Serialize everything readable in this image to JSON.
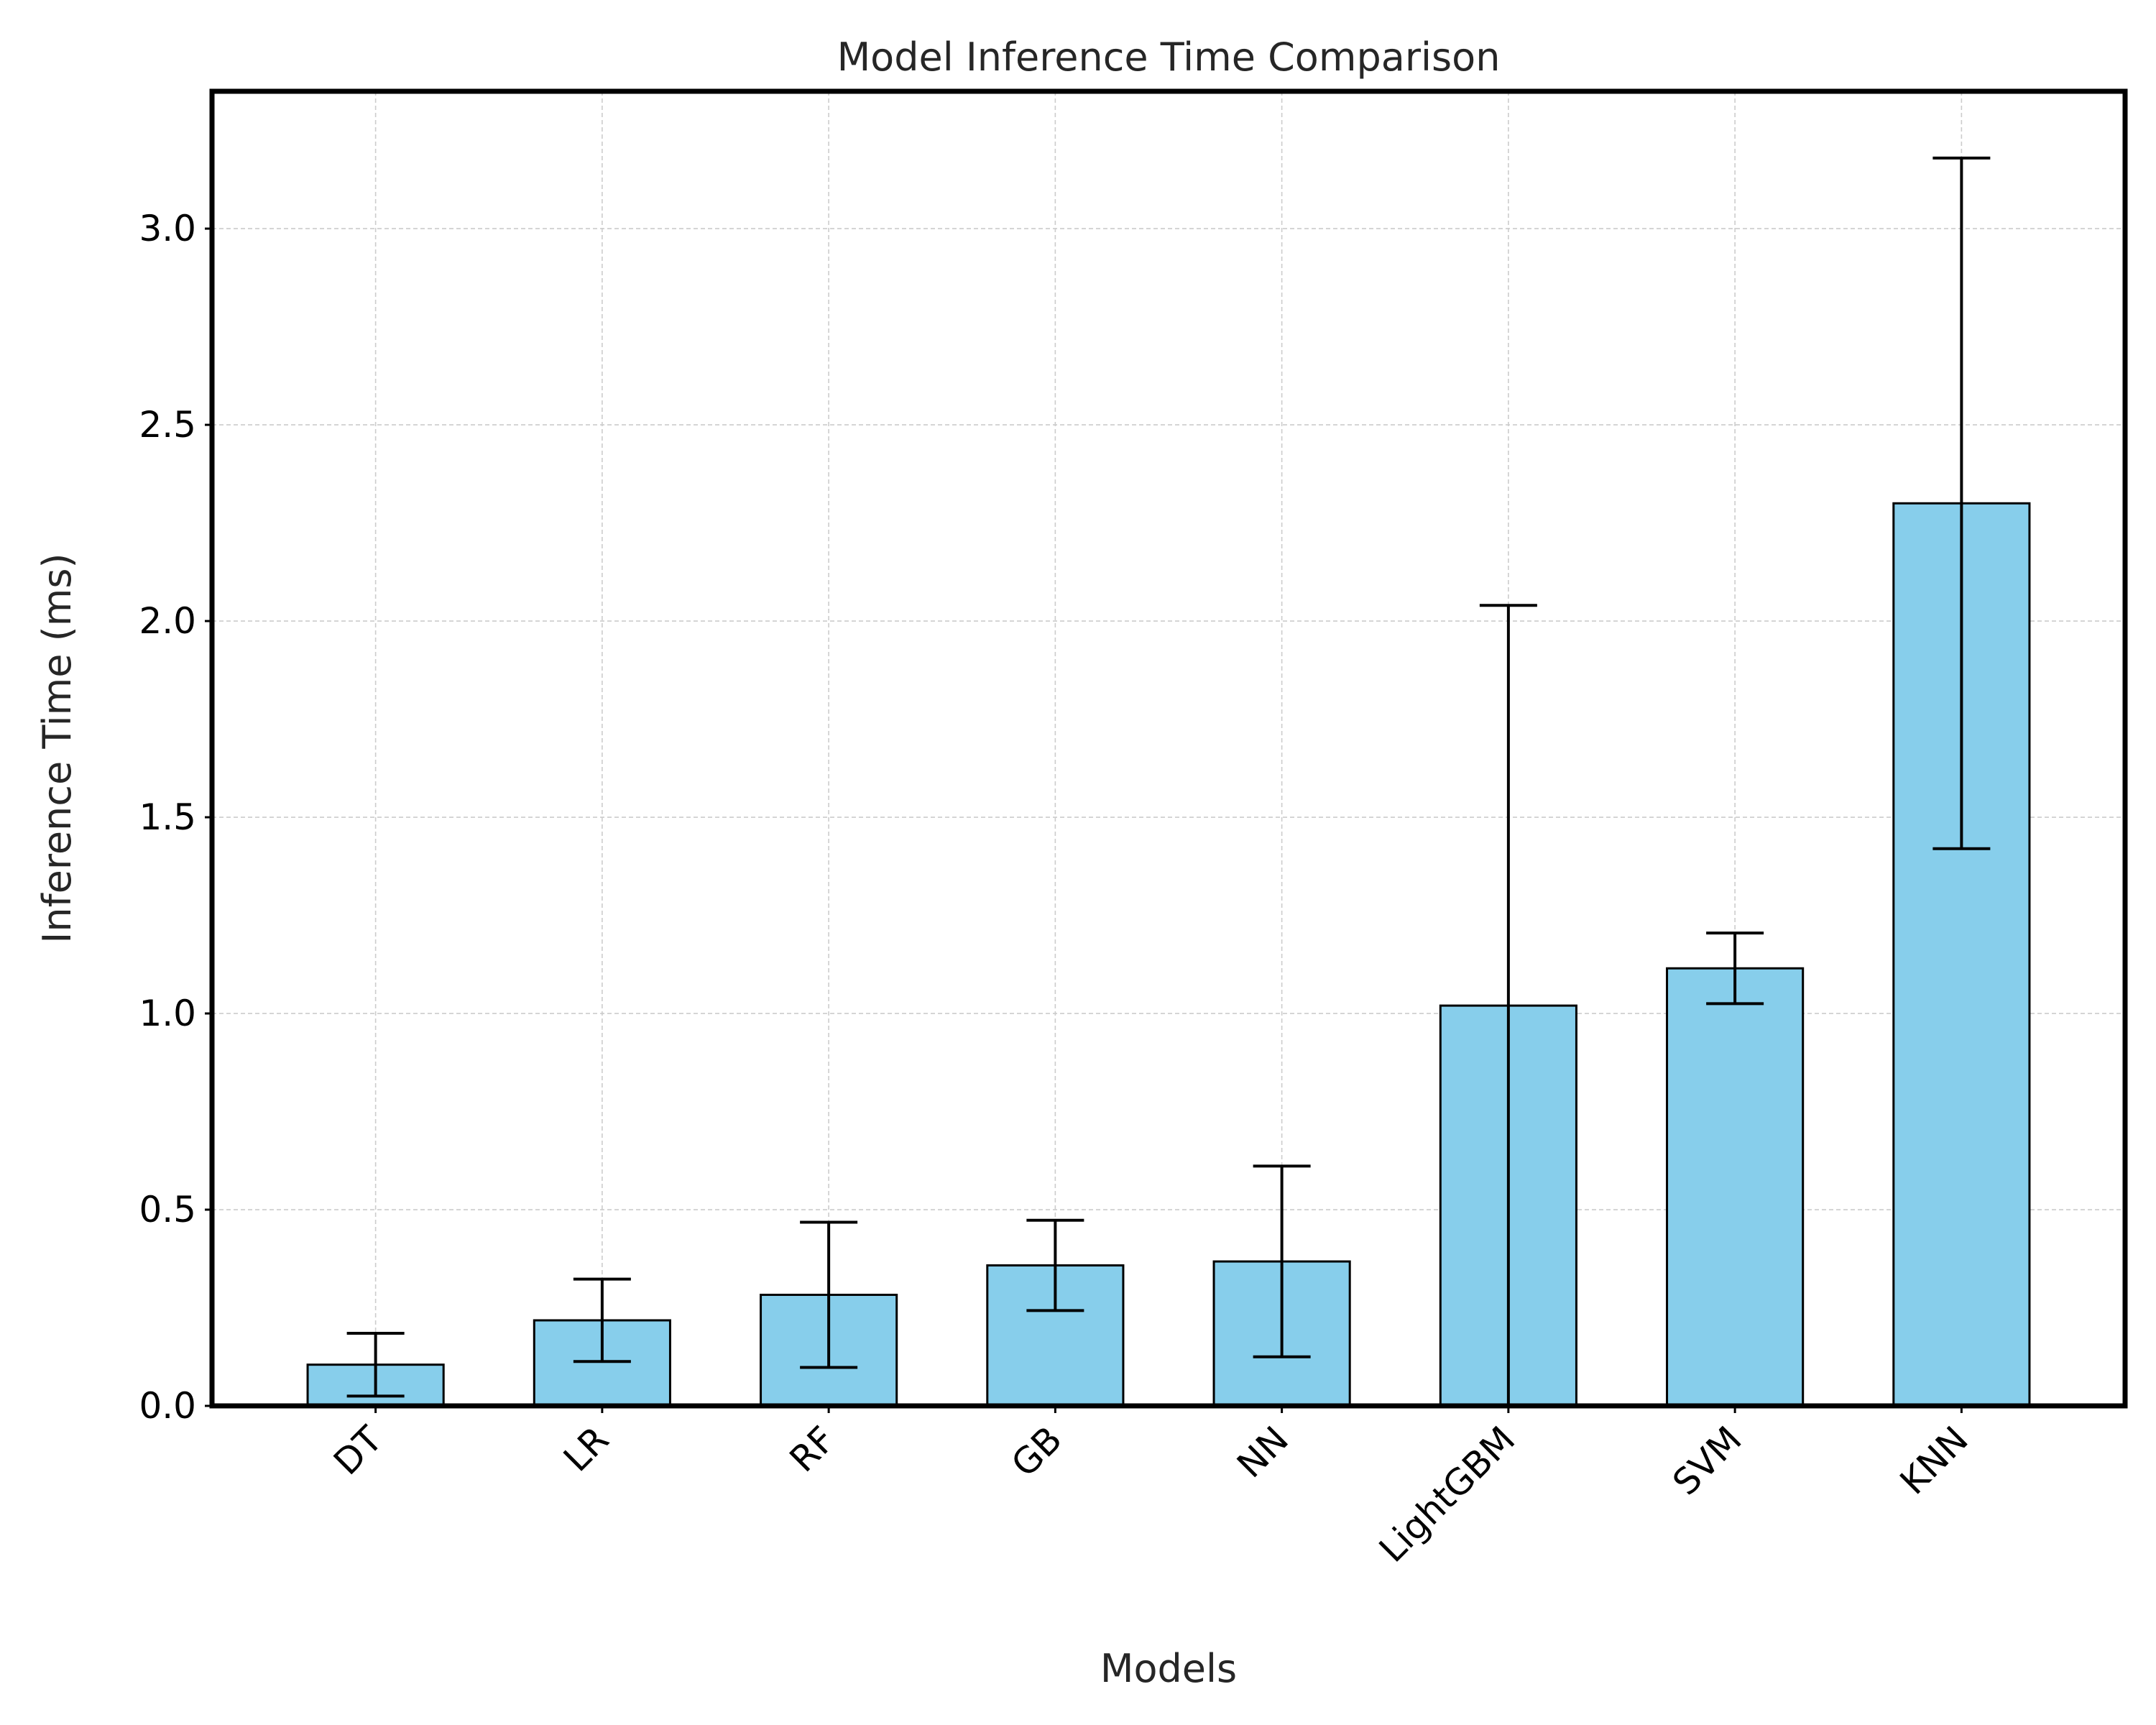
{
  "chart_data": {
    "type": "bar",
    "title": "Model Inference Time Comparison",
    "xlabel": "Models",
    "ylabel": "Inference Time (ms)",
    "categories": [
      "DT",
      "LR",
      "RF",
      "GB",
      "NN",
      "LightGBM",
      "SVM",
      "KNN"
    ],
    "values": [
      0.105,
      0.218,
      0.283,
      0.358,
      0.368,
      1.02,
      1.115,
      2.3
    ],
    "errors": [
      0.08,
      0.105,
      0.185,
      0.115,
      0.243,
      1.02,
      0.09,
      0.88
    ],
    "ylim": [
      0,
      3.35
    ],
    "yticks": [
      0.0,
      0.5,
      1.0,
      1.5,
      2.0,
      2.5,
      3.0
    ],
    "ytick_labels": [
      "0.0",
      "0.5",
      "1.0",
      "1.5",
      "2.0",
      "2.5",
      "3.0"
    ],
    "grid": true,
    "bar_color": "#87ceeb",
    "edge_color": "#000000",
    "error_color": "#000000"
  }
}
